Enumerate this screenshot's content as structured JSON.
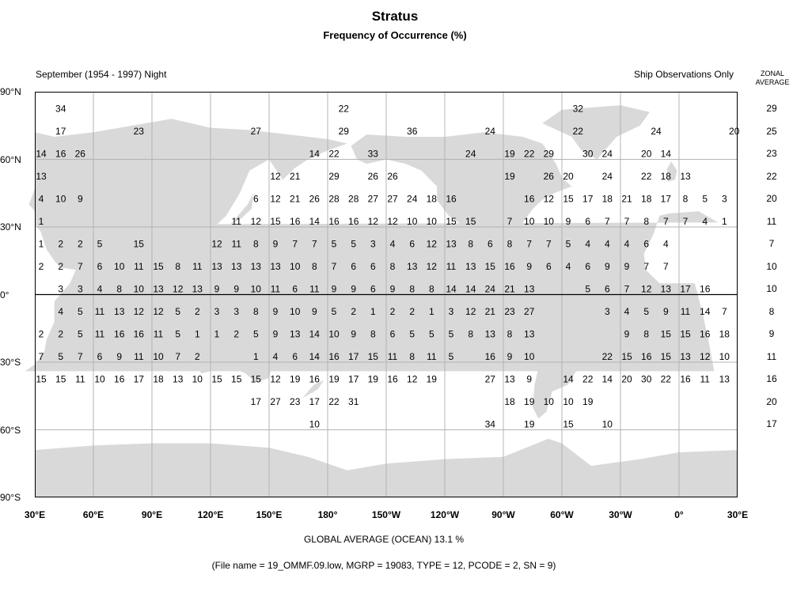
{
  "title": "Stratus",
  "subtitle": "Frequency of Occurrence (%)",
  "header_left": "September (1954 - 1997) Night",
  "header_right": "Ship Observations Only",
  "zonal_header": [
    "ZONAL",
    "AVERAGE"
  ],
  "lat_labels": [
    "90°N",
    "60°N",
    "30°N",
    "0°",
    "30°S",
    "60°S",
    "90°S"
  ],
  "lon_labels": [
    "30°E",
    "60°E",
    "90°E",
    "120°E",
    "150°E",
    "180°",
    "150°W",
    "120°W",
    "90°W",
    "60°W",
    "30°W",
    "0°",
    "30°E"
  ],
  "zonal_averages": [
    "29",
    "25",
    "23",
    "22",
    "20",
    "11",
    "7",
    "10",
    "10",
    "8",
    "9",
    "11",
    "16",
    "20",
    "17"
  ],
  "global_average": "GLOBAL AVERAGE (OCEAN)   13.1 %",
  "file_info": "(File name = 19_OMMF.09.low, MGRP = 19083, TYPE = 12, PCODE = 2, SN = 9)",
  "colors": {
    "land": "#d9d9d9",
    "grid": "#b4b4b4",
    "frame": "#000000",
    "text": "#000000"
  },
  "grid_values": [
    {
      "lat": 82.5,
      "cells": [
        [
          40,
          "34"
        ],
        [
          185,
          "22"
        ],
        [
          305,
          "32"
        ]
      ]
    },
    {
      "lat": 72.5,
      "cells": [
        [
          40,
          "17"
        ],
        [
          80,
          "23"
        ],
        [
          140,
          "27"
        ],
        [
          185,
          "29"
        ],
        [
          220,
          "36"
        ],
        [
          260,
          "24"
        ],
        [
          305,
          "22"
        ],
        [
          345,
          "24"
        ],
        [
          25,
          "20"
        ]
      ]
    },
    {
      "lat": 62.5,
      "cells": [
        [
          30,
          "14"
        ],
        [
          40,
          "16"
        ],
        [
          50,
          "26"
        ],
        [
          170,
          "14"
        ],
        [
          180,
          "22"
        ],
        [
          200,
          "33"
        ],
        [
          250,
          "24"
        ],
        [
          270,
          "19"
        ],
        [
          280,
          "22"
        ],
        [
          290,
          "29"
        ],
        [
          310,
          "30"
        ],
        [
          320,
          "24"
        ],
        [
          340,
          "20"
        ],
        [
          350,
          "14"
        ]
      ]
    },
    {
      "lat": 52.5,
      "cells": [
        [
          30,
          "13"
        ],
        [
          150,
          "12"
        ],
        [
          160,
          "21"
        ],
        [
          180,
          "29"
        ],
        [
          200,
          "26"
        ],
        [
          210,
          "26"
        ],
        [
          270,
          "19"
        ],
        [
          290,
          "26"
        ],
        [
          300,
          "20"
        ],
        [
          320,
          "24"
        ],
        [
          340,
          "22"
        ],
        [
          350,
          "18"
        ],
        [
          360,
          "13"
        ]
      ]
    },
    {
      "lat": 42.5,
      "cells": [
        [
          30,
          "4"
        ],
        [
          40,
          "10"
        ],
        [
          50,
          "9"
        ],
        [
          140,
          "6"
        ],
        [
          150,
          "12"
        ],
        [
          160,
          "21"
        ],
        [
          170,
          "26"
        ],
        [
          180,
          "28"
        ],
        [
          190,
          "28"
        ],
        [
          200,
          "27"
        ],
        [
          210,
          "27"
        ],
        [
          220,
          "24"
        ],
        [
          230,
          "18"
        ],
        [
          240,
          "16"
        ],
        [
          280,
          "16"
        ],
        [
          290,
          "12"
        ],
        [
          300,
          "15"
        ],
        [
          310,
          "17"
        ],
        [
          320,
          "18"
        ],
        [
          330,
          "21"
        ],
        [
          340,
          "18"
        ],
        [
          350,
          "17"
        ],
        [
          0,
          "8"
        ],
        [
          10,
          "5"
        ],
        [
          20,
          "3"
        ]
      ]
    },
    {
      "lat": 32.5,
      "cells": [
        [
          30,
          "1"
        ],
        [
          130,
          "11"
        ],
        [
          140,
          "12"
        ],
        [
          150,
          "15"
        ],
        [
          160,
          "16"
        ],
        [
          170,
          "14"
        ],
        [
          180,
          "16"
        ],
        [
          190,
          "16"
        ],
        [
          200,
          "12"
        ],
        [
          210,
          "12"
        ],
        [
          220,
          "10"
        ],
        [
          230,
          "10"
        ],
        [
          240,
          "15"
        ],
        [
          250,
          "15"
        ],
        [
          270,
          "7"
        ],
        [
          280,
          "10"
        ],
        [
          290,
          "10"
        ],
        [
          300,
          "9"
        ],
        [
          310,
          "6"
        ],
        [
          320,
          "7"
        ],
        [
          330,
          "7"
        ],
        [
          340,
          "8"
        ],
        [
          350,
          "7"
        ],
        [
          0,
          "7"
        ],
        [
          10,
          "4"
        ],
        [
          20,
          "1"
        ]
      ]
    },
    {
      "lat": 22.5,
      "cells": [
        [
          30,
          "1"
        ],
        [
          40,
          "2"
        ],
        [
          50,
          "2"
        ],
        [
          60,
          "5"
        ],
        [
          80,
          "15"
        ],
        [
          120,
          "12"
        ],
        [
          130,
          "11"
        ],
        [
          140,
          "8"
        ],
        [
          150,
          "9"
        ],
        [
          160,
          "7"
        ],
        [
          170,
          "7"
        ],
        [
          180,
          "5"
        ],
        [
          190,
          "5"
        ],
        [
          200,
          "3"
        ],
        [
          210,
          "4"
        ],
        [
          220,
          "6"
        ],
        [
          230,
          "12"
        ],
        [
          240,
          "13"
        ],
        [
          250,
          "8"
        ],
        [
          260,
          "6"
        ],
        [
          270,
          "8"
        ],
        [
          280,
          "7"
        ],
        [
          290,
          "7"
        ],
        [
          300,
          "5"
        ],
        [
          310,
          "4"
        ],
        [
          320,
          "4"
        ],
        [
          330,
          "4"
        ],
        [
          340,
          "6"
        ],
        [
          350,
          "4"
        ]
      ]
    },
    {
      "lat": 12.5,
      "cells": [
        [
          30,
          "2"
        ],
        [
          40,
          "2"
        ],
        [
          50,
          "7"
        ],
        [
          60,
          "6"
        ],
        [
          70,
          "10"
        ],
        [
          80,
          "11"
        ],
        [
          90,
          "15"
        ],
        [
          100,
          "8"
        ],
        [
          110,
          "11"
        ],
        [
          120,
          "13"
        ],
        [
          130,
          "13"
        ],
        [
          140,
          "13"
        ],
        [
          150,
          "13"
        ],
        [
          160,
          "10"
        ],
        [
          170,
          "8"
        ],
        [
          180,
          "7"
        ],
        [
          190,
          "6"
        ],
        [
          200,
          "6"
        ],
        [
          210,
          "8"
        ],
        [
          220,
          "13"
        ],
        [
          230,
          "12"
        ],
        [
          240,
          "11"
        ],
        [
          250,
          "13"
        ],
        [
          260,
          "15"
        ],
        [
          270,
          "16"
        ],
        [
          280,
          "9"
        ],
        [
          290,
          "6"
        ],
        [
          300,
          "4"
        ],
        [
          310,
          "6"
        ],
        [
          320,
          "9"
        ],
        [
          330,
          "9"
        ],
        [
          340,
          "7"
        ],
        [
          350,
          "7"
        ]
      ]
    },
    {
      "lat": 2.5,
      "cells": [
        [
          40,
          "3"
        ],
        [
          50,
          "3"
        ],
        [
          60,
          "4"
        ],
        [
          70,
          "8"
        ],
        [
          80,
          "10"
        ],
        [
          90,
          "13"
        ],
        [
          100,
          "12"
        ],
        [
          110,
          "13"
        ],
        [
          120,
          "9"
        ],
        [
          130,
          "9"
        ],
        [
          140,
          "10"
        ],
        [
          150,
          "11"
        ],
        [
          160,
          "6"
        ],
        [
          170,
          "11"
        ],
        [
          180,
          "9"
        ],
        [
          190,
          "9"
        ],
        [
          200,
          "6"
        ],
        [
          210,
          "9"
        ],
        [
          220,
          "8"
        ],
        [
          230,
          "8"
        ],
        [
          240,
          "14"
        ],
        [
          250,
          "14"
        ],
        [
          260,
          "24"
        ],
        [
          270,
          "21"
        ],
        [
          280,
          "13"
        ],
        [
          310,
          "5"
        ],
        [
          320,
          "6"
        ],
        [
          330,
          "7"
        ],
        [
          340,
          "12"
        ],
        [
          350,
          "13"
        ],
        [
          0,
          "17"
        ],
        [
          10,
          "16"
        ]
      ]
    },
    {
      "lat": -7.5,
      "cells": [
        [
          40,
          "4"
        ],
        [
          50,
          "5"
        ],
        [
          60,
          "11"
        ],
        [
          70,
          "13"
        ],
        [
          80,
          "12"
        ],
        [
          90,
          "12"
        ],
        [
          100,
          "5"
        ],
        [
          110,
          "2"
        ],
        [
          120,
          "3"
        ],
        [
          130,
          "3"
        ],
        [
          140,
          "8"
        ],
        [
          150,
          "9"
        ],
        [
          160,
          "10"
        ],
        [
          170,
          "9"
        ],
        [
          180,
          "5"
        ],
        [
          190,
          "2"
        ],
        [
          200,
          "1"
        ],
        [
          210,
          "2"
        ],
        [
          220,
          "2"
        ],
        [
          230,
          "1"
        ],
        [
          240,
          "3"
        ],
        [
          250,
          "12"
        ],
        [
          260,
          "21"
        ],
        [
          270,
          "23"
        ],
        [
          280,
          "27"
        ],
        [
          320,
          "3"
        ],
        [
          330,
          "4"
        ],
        [
          340,
          "5"
        ],
        [
          350,
          "9"
        ],
        [
          0,
          "11"
        ],
        [
          10,
          "14"
        ],
        [
          20,
          "7"
        ]
      ]
    },
    {
      "lat": -17.5,
      "cells": [
        [
          30,
          "2"
        ],
        [
          40,
          "2"
        ],
        [
          50,
          "5"
        ],
        [
          60,
          "11"
        ],
        [
          70,
          "16"
        ],
        [
          80,
          "16"
        ],
        [
          90,
          "11"
        ],
        [
          100,
          "5"
        ],
        [
          110,
          "1"
        ],
        [
          120,
          "1"
        ],
        [
          130,
          "2"
        ],
        [
          140,
          "5"
        ],
        [
          150,
          "9"
        ],
        [
          160,
          "13"
        ],
        [
          170,
          "14"
        ],
        [
          180,
          "10"
        ],
        [
          190,
          "9"
        ],
        [
          200,
          "8"
        ],
        [
          210,
          "6"
        ],
        [
          220,
          "5"
        ],
        [
          230,
          "5"
        ],
        [
          240,
          "5"
        ],
        [
          250,
          "8"
        ],
        [
          260,
          "13"
        ],
        [
          270,
          "8"
        ],
        [
          280,
          "13"
        ],
        [
          330,
          "9"
        ],
        [
          340,
          "8"
        ],
        [
          350,
          "15"
        ],
        [
          0,
          "15"
        ],
        [
          10,
          "16"
        ],
        [
          20,
          "18"
        ]
      ]
    },
    {
      "lat": -27.5,
      "cells": [
        [
          30,
          "7"
        ],
        [
          40,
          "5"
        ],
        [
          50,
          "7"
        ],
        [
          60,
          "6"
        ],
        [
          70,
          "9"
        ],
        [
          80,
          "11"
        ],
        [
          90,
          "10"
        ],
        [
          100,
          "7"
        ],
        [
          110,
          "2"
        ],
        [
          140,
          "1"
        ],
        [
          150,
          "4"
        ],
        [
          160,
          "6"
        ],
        [
          170,
          "14"
        ],
        [
          180,
          "16"
        ],
        [
          190,
          "17"
        ],
        [
          200,
          "15"
        ],
        [
          210,
          "11"
        ],
        [
          220,
          "8"
        ],
        [
          230,
          "11"
        ],
        [
          240,
          "5"
        ],
        [
          260,
          "16"
        ],
        [
          270,
          "9"
        ],
        [
          280,
          "10"
        ],
        [
          320,
          "22"
        ],
        [
          330,
          "15"
        ],
        [
          340,
          "16"
        ],
        [
          350,
          "15"
        ],
        [
          0,
          "13"
        ],
        [
          10,
          "12"
        ],
        [
          20,
          "10"
        ]
      ]
    },
    {
      "lat": -37.5,
      "cells": [
        [
          30,
          "15"
        ],
        [
          40,
          "15"
        ],
        [
          50,
          "11"
        ],
        [
          60,
          "10"
        ],
        [
          70,
          "16"
        ],
        [
          80,
          "17"
        ],
        [
          90,
          "18"
        ],
        [
          100,
          "13"
        ],
        [
          110,
          "10"
        ],
        [
          120,
          "15"
        ],
        [
          130,
          "15"
        ],
        [
          140,
          "15"
        ],
        [
          150,
          "12"
        ],
        [
          160,
          "19"
        ],
        [
          170,
          "16"
        ],
        [
          180,
          "19"
        ],
        [
          190,
          "17"
        ],
        [
          200,
          "19"
        ],
        [
          210,
          "16"
        ],
        [
          220,
          "12"
        ],
        [
          230,
          "19"
        ],
        [
          260,
          "27"
        ],
        [
          270,
          "13"
        ],
        [
          280,
          "9"
        ],
        [
          300,
          "14"
        ],
        [
          310,
          "22"
        ],
        [
          320,
          "14"
        ],
        [
          330,
          "20"
        ],
        [
          340,
          "30"
        ],
        [
          350,
          "22"
        ],
        [
          0,
          "16"
        ],
        [
          10,
          "11"
        ],
        [
          20,
          "13"
        ]
      ]
    },
    {
      "lat": -47.5,
      "cells": [
        [
          140,
          "17"
        ],
        [
          150,
          "27"
        ],
        [
          160,
          "23"
        ],
        [
          170,
          "17"
        ],
        [
          180,
          "22"
        ],
        [
          190,
          "31"
        ],
        [
          270,
          "18"
        ],
        [
          280,
          "19"
        ],
        [
          290,
          "10"
        ],
        [
          300,
          "10"
        ],
        [
          310,
          "19"
        ]
      ]
    },
    {
      "lat": -57.5,
      "cells": [
        [
          170,
          "10"
        ],
        [
          260,
          "34"
        ],
        [
          280,
          "19"
        ],
        [
          300,
          "15"
        ],
        [
          320,
          "10"
        ]
      ]
    }
  ]
}
